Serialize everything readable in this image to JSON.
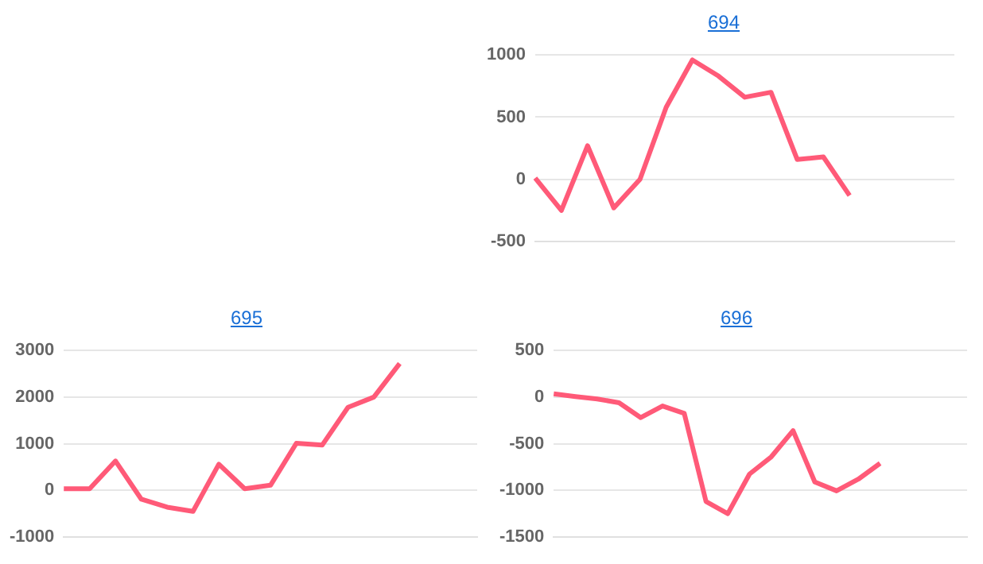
{
  "chart_data": [
    {
      "type": "line",
      "title": "694",
      "categories": [
        null,
        null,
        null,
        null,
        null,
        null,
        null,
        null,
        null,
        null,
        null,
        null,
        null,
        null,
        null,
        null,
        null
      ],
      "values": [
        10,
        -250,
        270,
        -230,
        0,
        580,
        960,
        830,
        660,
        700,
        160,
        180,
        -130,
        null,
        null,
        null,
        null
      ],
      "color": "#ff5a78",
      "ylim": [
        -500,
        1000
      ],
      "yticks": [
        -500,
        0,
        500,
        1000
      ],
      "grid": "y",
      "marker": "none",
      "tick_labels": "y"
    },
    {
      "type": "line",
      "title": "695",
      "categories": [
        null,
        null,
        null,
        null,
        null,
        null,
        null,
        null,
        null,
        null,
        null,
        null,
        null,
        null,
        null,
        null,
        null
      ],
      "values": [
        35,
        35,
        630,
        -190,
        -360,
        -450,
        560,
        35,
        110,
        1010,
        970,
        1780,
        2000,
        2720,
        null,
        null,
        null
      ],
      "color": "#ff5a78",
      "ylim": [
        -1000,
        3000
      ],
      "yticks": [
        -1000,
        0,
        1000,
        2000,
        3000
      ],
      "grid": "y",
      "marker": "none",
      "tick_labels": "y"
    },
    {
      "type": "line",
      "title": "696",
      "categories": [
        null,
        null,
        null,
        null,
        null,
        null,
        null,
        null,
        null,
        null,
        null,
        null,
        null,
        null,
        null,
        null,
        null,
        null,
        null,
        null
      ],
      "values": [
        35,
        5,
        -20,
        -60,
        -220,
        -95,
        -175,
        -1120,
        -1250,
        -825,
        -640,
        -360,
        -910,
        -1005,
        -880,
        -710,
        null,
        null,
        null,
        null
      ],
      "color": "#ff5a78",
      "ylim": [
        -1500,
        500
      ],
      "yticks": [
        -1500,
        -1000,
        -500,
        0,
        500
      ],
      "grid": "y",
      "marker": "none",
      "tick_labels": "y"
    }
  ]
}
